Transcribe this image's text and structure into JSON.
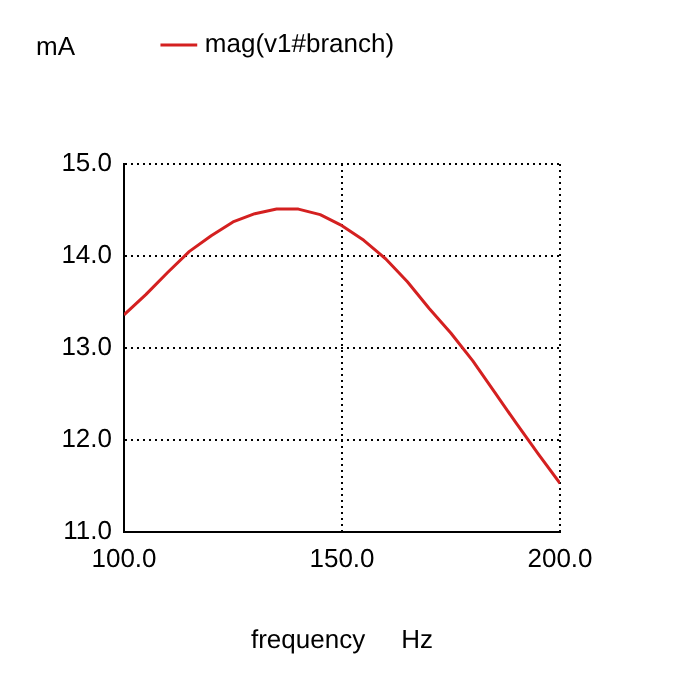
{
  "chart_data": {
    "type": "line",
    "xlabel": "frequency     Hz",
    "ylabel": "mA",
    "x": [
      100,
      105,
      110,
      115,
      120,
      125,
      130,
      135,
      140,
      145,
      150,
      155,
      160,
      165,
      170,
      175,
      180,
      185,
      190,
      195,
      200
    ],
    "series": [
      {
        "name": "mag(v1#branch)",
        "color": "#d42020",
        "values": [
          13.36,
          13.58,
          13.82,
          14.05,
          14.22,
          14.37,
          14.46,
          14.51,
          14.51,
          14.45,
          14.33,
          14.17,
          13.97,
          13.72,
          13.43,
          13.16,
          12.86,
          12.52,
          12.18,
          11.85,
          11.53
        ]
      }
    ],
    "xlim": [
      100,
      200
    ],
    "xticks": [
      {
        "value": 100,
        "label": "100.0"
      },
      {
        "value": 150,
        "label": "150.0"
      },
      {
        "value": 200,
        "label": "200.0"
      }
    ],
    "ylim": [
      11,
      15
    ],
    "yticks": [
      {
        "value": 11,
        "label": "11.0"
      },
      {
        "value": 12,
        "label": "12.0"
      },
      {
        "value": 13,
        "label": "13.0"
      },
      {
        "value": 14,
        "label": "14.0"
      },
      {
        "value": 15,
        "label": "15.0"
      }
    ],
    "grid": true,
    "legend": "top",
    "marker": "none",
    "line_style": "solid"
  }
}
